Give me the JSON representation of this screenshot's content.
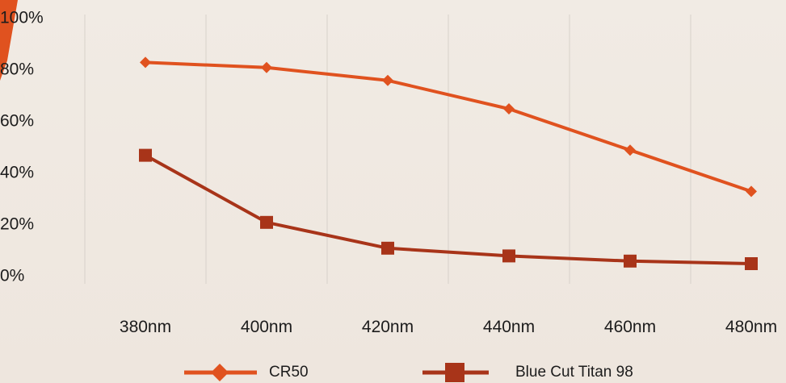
{
  "chart_data": {
    "type": "line",
    "categories": [
      "380nm",
      "400nm",
      "420nm",
      "440nm",
      "460nm",
      "480nm"
    ],
    "ylim": [
      0,
      100
    ],
    "yticks": [
      "0%",
      "20%",
      "40%",
      "60%",
      "80%",
      "100%"
    ],
    "grid": "vertical",
    "legend": "bottom",
    "series": [
      {
        "name": "CR50",
        "marker": "diamond",
        "color": "#e0521f",
        "values": [
          83,
          81,
          76,
          65,
          49,
          33
        ]
      },
      {
        "name": "Blue Cut Titan 98",
        "marker": "square",
        "color": "#a83419",
        "values": [
          47,
          21,
          11,
          8,
          6,
          5
        ]
      }
    ]
  },
  "colors": {
    "accent_stripe": "#e0521f",
    "gridline": "#d7d1ca"
  }
}
